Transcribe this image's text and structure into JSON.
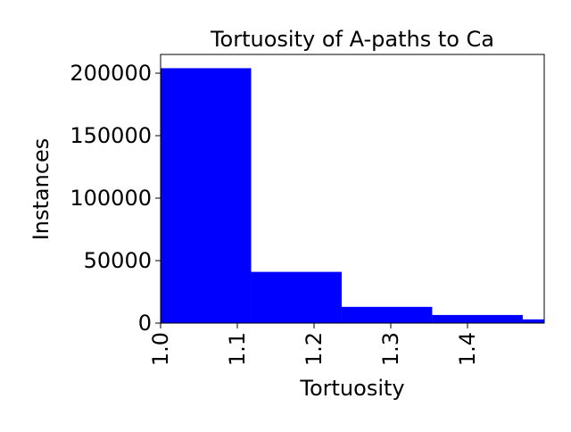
{
  "chart_data": {
    "type": "bar",
    "title": "Tortuosity of A-paths to Ca",
    "xlabel": "Tortuosity",
    "ylabel": "Instances",
    "bins": [
      {
        "x0": 1.0,
        "x1": 1.118,
        "value": 204000
      },
      {
        "x0": 1.118,
        "x1": 1.236,
        "value": 41000
      },
      {
        "x0": 1.236,
        "x1": 1.354,
        "value": 13000
      },
      {
        "x0": 1.354,
        "x1": 1.472,
        "value": 6500
      },
      {
        "x0": 1.472,
        "x1": 1.59,
        "value": 3000
      }
    ],
    "xlim": [
      1.0,
      1.5
    ],
    "ylim": [
      0,
      215000
    ],
    "xticks": [
      1.0,
      1.1,
      1.2,
      1.3,
      1.4
    ],
    "xtick_labels": [
      "1.0",
      "1.1",
      "1.2",
      "1.3",
      "1.4"
    ],
    "yticks": [
      0,
      50000,
      100000,
      150000,
      200000
    ],
    "ytick_labels": [
      "0",
      "50000",
      "100000",
      "150000",
      "200000"
    ],
    "bar_color": "#0000ff",
    "grid": false,
    "legend": "none"
  }
}
